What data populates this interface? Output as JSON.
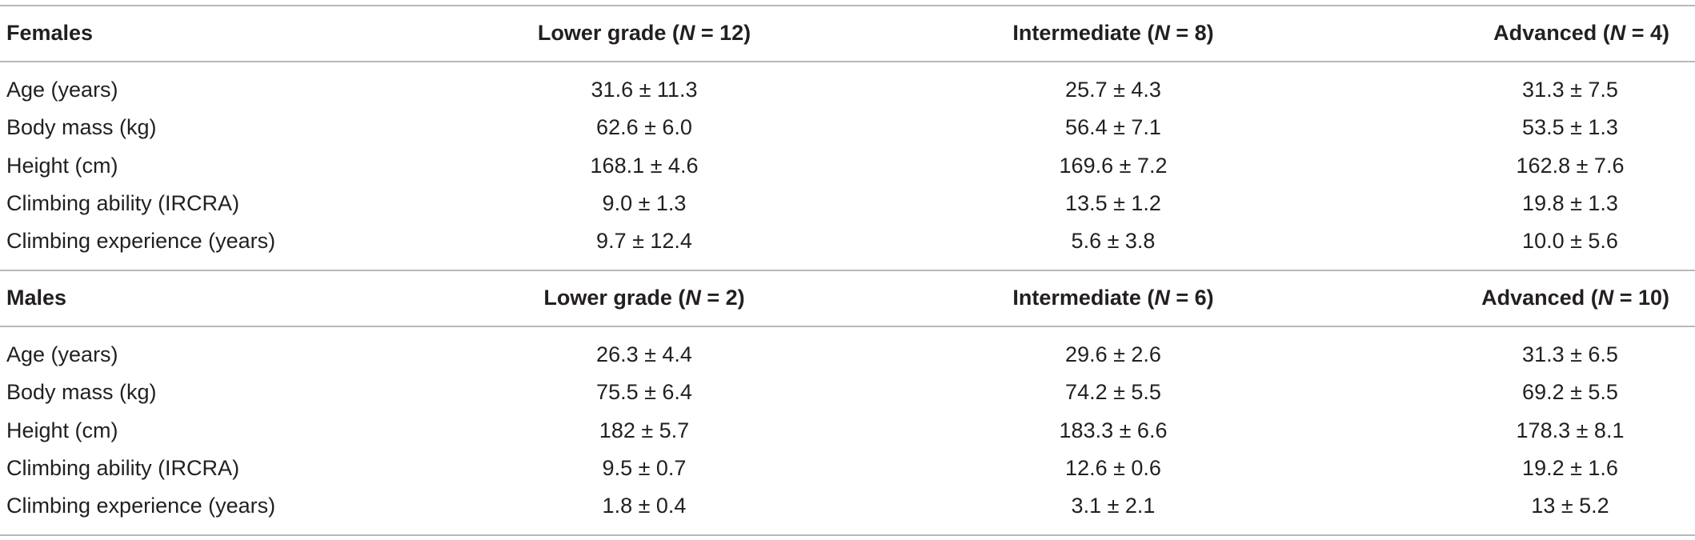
{
  "table": {
    "sections": [
      {
        "title": "Females",
        "headers": [
          [
            "Lower grade (",
            "N",
            " = 12)"
          ],
          [
            "Intermediate (",
            "N",
            " = 8)"
          ],
          [
            "Advanced (",
            "N",
            " = 4)"
          ]
        ],
        "rows": [
          [
            "Age (years)",
            "31.6 ± 11.3",
            "25.7 ± 4.3",
            "31.3 ± 7.5"
          ],
          [
            "Body mass (kg)",
            "62.6 ± 6.0",
            "56.4 ± 7.1",
            "53.5 ± 1.3"
          ],
          [
            "Height (cm)",
            "168.1 ± 4.6",
            "169.6 ± 7.2",
            "162.8 ± 7.6"
          ],
          [
            "Climbing ability (IRCRA)",
            "9.0 ± 1.3",
            "13.5 ± 1.2",
            "19.8 ± 1.3"
          ],
          [
            "Climbing experience (years)",
            "9.7 ± 12.4",
            "5.6 ± 3.8",
            "10.0 ± 5.6"
          ]
        ]
      },
      {
        "title": "Males",
        "headers": [
          [
            "Lower grade (",
            "N",
            " = 2)"
          ],
          [
            "Intermediate (",
            "N",
            " = 6)"
          ],
          [
            "Advanced (",
            "N",
            " = 10)"
          ]
        ],
        "rows": [
          [
            "Age (years)",
            "26.3 ± 4.4",
            "29.6 ± 2.6",
            "31.3 ± 6.5"
          ],
          [
            "Body mass (kg)",
            "75.5 ± 6.4",
            "74.2 ± 5.5",
            "69.2 ± 5.5"
          ],
          [
            "Height (cm)",
            "182 ± 5.7",
            "183.3 ± 6.6",
            "178.3 ± 8.1"
          ],
          [
            "Climbing ability (IRCRA)",
            "9.5 ± 0.7",
            "12.6 ± 0.6",
            "19.2 ± 1.6"
          ],
          [
            "Climbing experience (years)",
            "1.8 ± 0.4",
            "3.1 ± 2.1",
            "13 ± 5.2"
          ]
        ]
      }
    ]
  }
}
